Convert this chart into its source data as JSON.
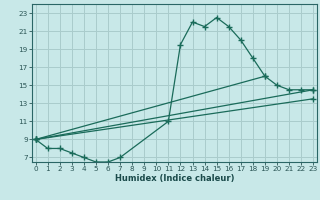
{
  "xlabel": "Humidex (Indice chaleur)",
  "bg_color": "#c8e8e8",
  "grid_color": "#aacccc",
  "line_color": "#1a6b5a",
  "series": [
    {
      "x": [
        0,
        1,
        2,
        3,
        4,
        5,
        6,
        7,
        11,
        12,
        13,
        14,
        15,
        16,
        17,
        18,
        19
      ],
      "y": [
        9,
        8,
        8,
        7.5,
        7,
        6.5,
        6.5,
        7,
        11,
        19.5,
        22,
        21.5,
        22.5,
        21.5,
        20,
        18,
        16
      ]
    },
    {
      "x": [
        0,
        19,
        20,
        21,
        22,
        23
      ],
      "y": [
        9,
        16,
        15,
        14.5,
        14.5,
        14.5
      ]
    },
    {
      "x": [
        0,
        23
      ],
      "y": [
        9,
        14.5
      ]
    },
    {
      "x": [
        0,
        23
      ],
      "y": [
        9,
        13.5
      ]
    }
  ],
  "xlim": [
    -0.3,
    23.3
  ],
  "ylim": [
    6.5,
    24
  ],
  "xticks": [
    0,
    1,
    2,
    3,
    4,
    5,
    6,
    7,
    8,
    9,
    10,
    11,
    12,
    13,
    14,
    15,
    16,
    17,
    18,
    19,
    20,
    21,
    22,
    23
  ],
  "yticks": [
    7,
    9,
    11,
    13,
    15,
    17,
    19,
    21,
    23
  ],
  "tick_fontsize": 5.2,
  "xlabel_fontsize": 6.0
}
